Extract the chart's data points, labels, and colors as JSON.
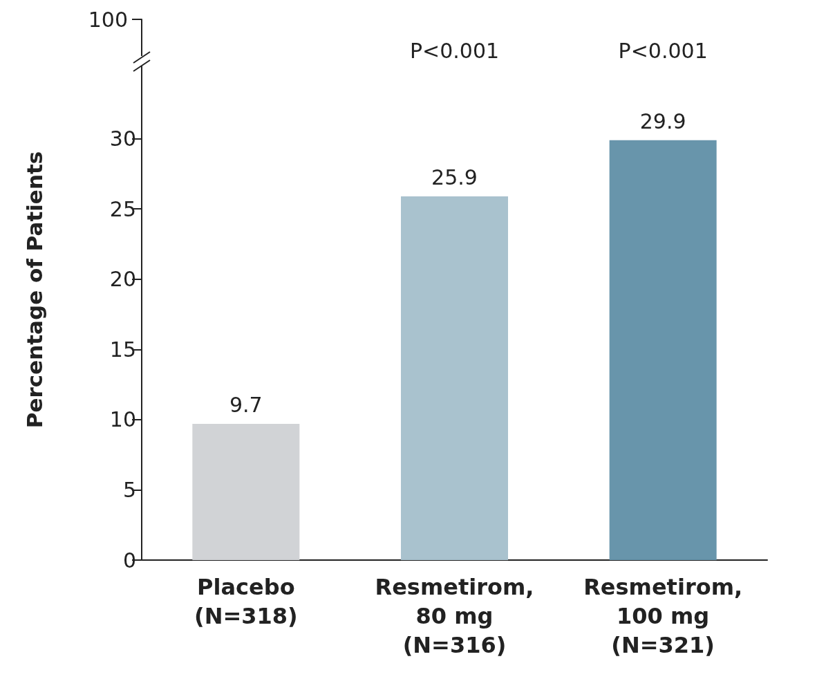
{
  "chart_data": {
    "type": "bar",
    "ylabel": "Percentage of Patients",
    "categories": [
      "Placebo\n(N=318)",
      "Resmetirom,\n80 mg\n(N=316)",
      "Resmetirom,\n100 mg\n(N=321)"
    ],
    "values": [
      9.7,
      25.9,
      29.9
    ],
    "colors": [
      "#d1d3d6",
      "#a9c2ce",
      "#6895ab"
    ],
    "data_labels": true,
    "ylim": [
      0,
      38.5
    ],
    "yticks": [
      0,
      5,
      10,
      15,
      20,
      25,
      30
    ],
    "grid": false,
    "annotations": [
      "100",
      "P<0.001",
      "P<0.001"
    ]
  }
}
